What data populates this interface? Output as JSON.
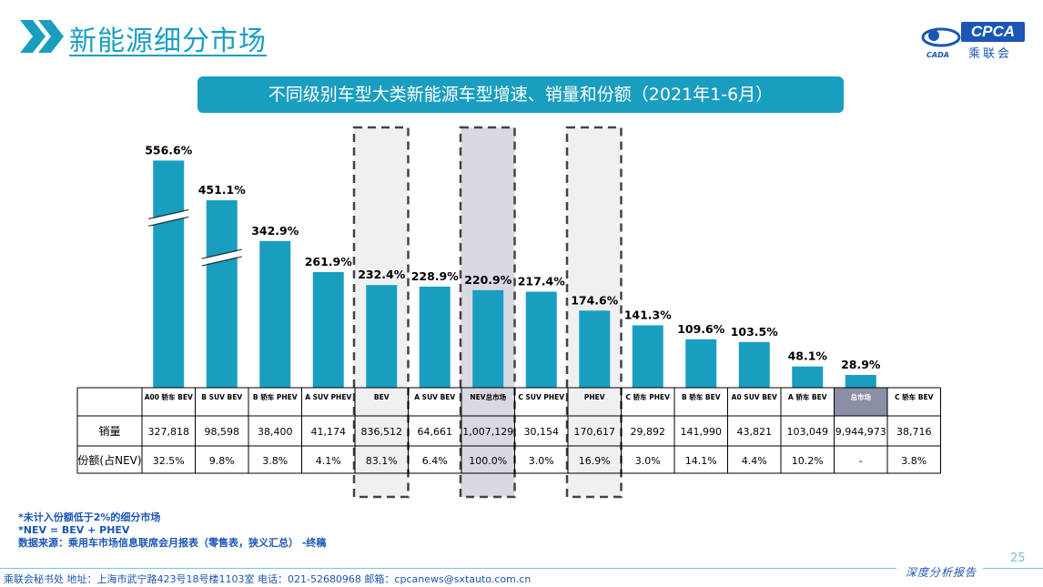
{
  "header": {
    "title": "新能源细分市场",
    "logo_text": "CPCA",
    "logo_sub": "乘联会",
    "logo_small": "CADA",
    "chevrons_icon": "double-chevron-right-icon"
  },
  "chart_data": {
    "type": "bar",
    "title": "不同级别车型大类新能源车型增速、销量和份额（2021年1-6月）",
    "categories": [
      "A00 轿车 BEV",
      "B SUV BEV",
      "B 轿车 PHEV",
      "A SUV PHEV",
      "BEV",
      "A SUV BEV",
      "NEV总市场",
      "C SUV PHEV",
      "PHEV",
      "C 轿车 PHEV",
      "B 轿车 BEV",
      "A0 SUV BEV",
      "A 轿车 BEV",
      "总市场",
      "C 轿车 BEV"
    ],
    "growth_labels": [
      "556.6%",
      "451.1%",
      "342.9%",
      "261.9%",
      "232.4%",
      "228.9%",
      "220.9%",
      "217.4%",
      "174.6%",
      "141.3%",
      "109.6%",
      "103.5%",
      "48.1%",
      "28.9%",
      ""
    ],
    "series": [
      {
        "name": "",
        "values": [
          556.6,
          451.1,
          342.9,
          261.9,
          232.4,
          228.9,
          220.9,
          217.4,
          174.6,
          141.3,
          109.6,
          103.5,
          48.1,
          28.9,
          0
        ]
      }
    ],
    "axis_breaks": [
      "A00 轿车 BEV",
      "B SUV BEV"
    ],
    "highlighted": [
      "BEV",
      "NEV总市场",
      "PHEV"
    ],
    "total_market_category": "总市场",
    "bar_color": "#1a9ec0",
    "table": {
      "row_labels": [
        "销量",
        "份额(占NEV)"
      ],
      "sales": [
        "327,818",
        "98,598",
        "38,400",
        "41,174",
        "836,512",
        "64,661",
        "1,007,129",
        "30,154",
        "170,617",
        "29,892",
        "141,990",
        "43,821",
        "103,049",
        "9,944,973",
        "38,716"
      ],
      "share": [
        "32.5%",
        "9.8%",
        "3.8%",
        "4.1%",
        "83.1%",
        "6.4%",
        "100.0%",
        "3.0%",
        "16.9%",
        "3.0%",
        "14.1%",
        "4.4%",
        "10.2%",
        "-",
        "3.8%"
      ]
    }
  },
  "notes": [
    "*未计入份额低于2%的细分市场",
    "*NEV = BEV + PHEV",
    "数据来源：乘用车市场信息联席会月报表（零售表，狭义汇总） -终稿"
  ],
  "footer": {
    "page_number": "25",
    "report_label": "深度分析报告",
    "contact": "乘联会秘书处   地址：上海市武宁路423号18号楼1103室  电话：021-52680968   邮箱：cpcanews@sxtauto.com.cn"
  }
}
